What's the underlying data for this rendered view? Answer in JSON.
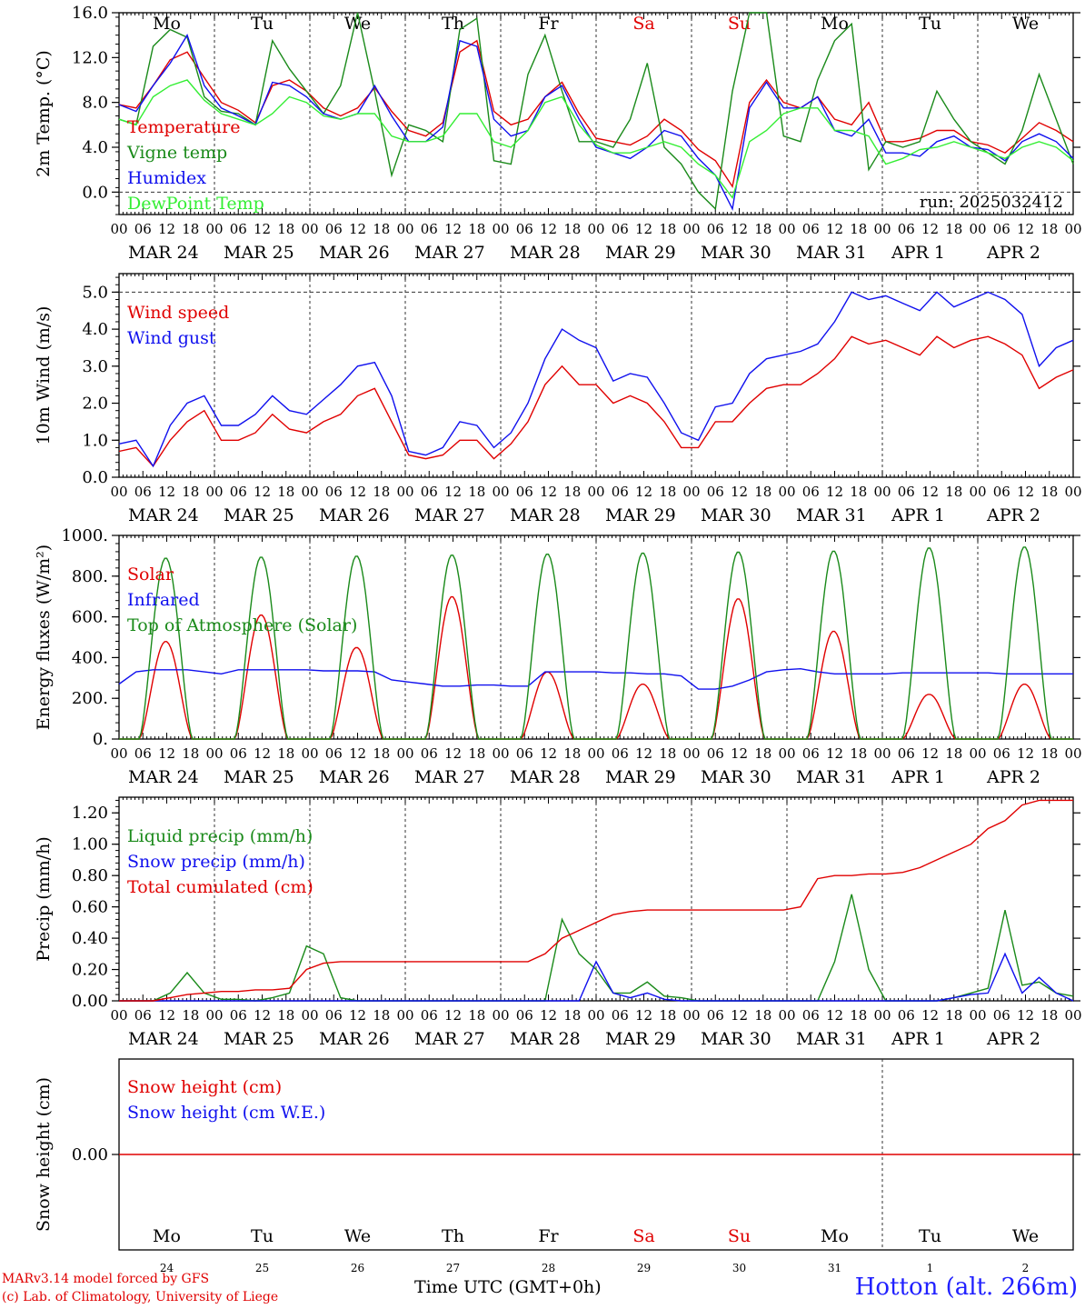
{
  "colors": {
    "red": "#e00000",
    "green": "#1a8a1a",
    "blue": "#1010ee",
    "lightgreen": "#33ee33"
  },
  "chart_data": [
    {
      "type": "line",
      "ylabel": "2m Temp. (°C)",
      "ylim": [
        -2,
        16
      ],
      "yticks": [
        0,
        4,
        8,
        12,
        16
      ],
      "yticklabels": [
        "0.0",
        "4.0",
        "8.0",
        "12.0",
        "16.0"
      ],
      "dashed_y": [
        0
      ],
      "day_labels": [
        "Mo",
        "Tu",
        "We",
        "Th",
        "Fr",
        "Sa",
        "Su",
        "Mo",
        "Tu",
        "We"
      ],
      "run_label": "run: 2025032412",
      "x": "hours since 2025-03-24 00 UTC, 6-hourly",
      "series": [
        {
          "name": "Temperature",
          "color": "red",
          "values": [
            7.8,
            7.5,
            9.5,
            11.8,
            12.5,
            10.2,
            8.0,
            7.3,
            6.2,
            9.5,
            10.0,
            9.0,
            7.5,
            6.8,
            7.5,
            9.3,
            7.2,
            5.5,
            5.0,
            6.2,
            12.5,
            13.5,
            7.2,
            6.0,
            6.5,
            8.5,
            9.8,
            7.0,
            4.8,
            4.5,
            4.2,
            5.0,
            6.5,
            5.5,
            3.8,
            2.8,
            0.5,
            8.0,
            10.0,
            8.0,
            7.5,
            8.5,
            6.5,
            6.0,
            8.0,
            4.5,
            4.5,
            4.8,
            5.5,
            5.5,
            4.5,
            4.2,
            3.5,
            4.8,
            6.2,
            5.5,
            4.5
          ]
        },
        {
          "name": "Vigne temp",
          "color": "green",
          "values": [
            6.5,
            6.0,
            13.0,
            14.5,
            13.8,
            8.5,
            7.2,
            7.0,
            6.0,
            13.5,
            11.0,
            9.0,
            7.0,
            9.5,
            16.0,
            9.0,
            1.5,
            6.0,
            5.5,
            4.5,
            14.5,
            15.5,
            2.8,
            2.5,
            10.5,
            14.0,
            9.0,
            4.5,
            4.5,
            4.0,
            6.5,
            11.5,
            4.0,
            2.5,
            0.0,
            -1.5,
            9.0,
            16.0,
            16.0,
            5.0,
            4.5,
            10.0,
            13.5,
            15.0,
            2.0,
            4.5,
            4.0,
            4.5,
            9.0,
            6.5,
            4.5,
            3.5,
            2.5,
            5.5,
            10.5,
            6.5,
            2.5
          ]
        },
        {
          "name": "Humidex",
          "color": "blue",
          "values": [
            7.8,
            7.2,
            9.5,
            11.5,
            14.0,
            9.5,
            7.5,
            6.8,
            6.0,
            9.8,
            9.5,
            8.5,
            7.0,
            6.5,
            7.0,
            9.5,
            6.8,
            4.5,
            4.5,
            5.8,
            13.5,
            13.0,
            6.5,
            5.0,
            5.5,
            8.5,
            9.5,
            6.5,
            4.0,
            3.5,
            3.0,
            4.0,
            5.5,
            5.0,
            3.0,
            1.5,
            -1.5,
            7.5,
            9.8,
            7.5,
            7.5,
            8.5,
            5.5,
            5.0,
            6.5,
            3.5,
            3.5,
            3.2,
            4.5,
            5.0,
            4.0,
            3.8,
            2.8,
            4.5,
            5.2,
            4.5,
            3.0
          ]
        },
        {
          "name": "DewPoint Temp",
          "color": "lightgreen",
          "values": [
            6.5,
            6.0,
            8.5,
            9.5,
            10.0,
            8.2,
            7.0,
            6.5,
            6.0,
            7.0,
            8.5,
            8.0,
            6.8,
            6.5,
            7.0,
            7.0,
            5.0,
            4.5,
            4.5,
            5.0,
            7.0,
            7.0,
            4.5,
            4.0,
            5.5,
            8.0,
            8.5,
            6.0,
            4.2,
            3.5,
            3.5,
            4.0,
            4.5,
            4.0,
            2.5,
            1.5,
            -0.5,
            4.5,
            5.5,
            7.0,
            7.5,
            7.5,
            5.5,
            5.5,
            5.0,
            2.5,
            3.0,
            3.8,
            4.0,
            4.5,
            4.0,
            3.5,
            3.0,
            4.0,
            4.5,
            4.0,
            2.8
          ]
        }
      ]
    },
    {
      "type": "line",
      "ylabel": "10m Wind (m/s)",
      "ylim": [
        0,
        5.5
      ],
      "yticks": [
        0,
        1,
        2,
        3,
        4,
        5
      ],
      "yticklabels": [
        "0.0",
        "1.0",
        "2.0",
        "3.0",
        "4.0",
        "5.0"
      ],
      "dashed_y": [
        5
      ],
      "series": [
        {
          "name": "Wind speed",
          "color": "red",
          "values": [
            0.7,
            0.8,
            0.3,
            1.0,
            1.5,
            1.8,
            1.0,
            1.0,
            1.2,
            1.7,
            1.3,
            1.2,
            1.5,
            1.7,
            2.2,
            2.4,
            1.5,
            0.6,
            0.5,
            0.6,
            1.0,
            1.0,
            0.5,
            0.9,
            1.5,
            2.5,
            3.0,
            2.5,
            2.5,
            2.0,
            2.2,
            2.0,
            1.5,
            0.8,
            0.8,
            1.5,
            1.5,
            2.0,
            2.4,
            2.5,
            2.5,
            2.8,
            3.2,
            3.8,
            3.6,
            3.7,
            3.5,
            3.3,
            3.8,
            3.5,
            3.7,
            3.8,
            3.6,
            3.3,
            2.4,
            2.7,
            2.9
          ]
        },
        {
          "name": "Wind gust",
          "color": "blue",
          "values": [
            0.9,
            1.0,
            0.3,
            1.4,
            2.0,
            2.2,
            1.4,
            1.4,
            1.7,
            2.2,
            1.8,
            1.7,
            2.1,
            2.5,
            3.0,
            3.1,
            2.2,
            0.7,
            0.6,
            0.8,
            1.5,
            1.4,
            0.8,
            1.2,
            2.0,
            3.2,
            4.0,
            3.7,
            3.5,
            2.6,
            2.8,
            2.7,
            2.0,
            1.2,
            1.0,
            1.9,
            2.0,
            2.8,
            3.2,
            3.3,
            3.4,
            3.6,
            4.2,
            5.0,
            4.8,
            4.9,
            4.7,
            4.5,
            5.0,
            4.6,
            4.8,
            5.0,
            4.8,
            4.4,
            3.0,
            3.5,
            3.7
          ]
        }
      ]
    },
    {
      "type": "line",
      "ylabel": "Energy fluxes (W/m²)",
      "ylim": [
        0,
        1000
      ],
      "yticks": [
        0,
        200,
        400,
        600,
        800,
        1000
      ],
      "yticklabels": [
        "0.",
        "200.",
        "400.",
        "600.",
        "800.",
        "1000."
      ],
      "series": [
        {
          "name": "Solar",
          "color": "red",
          "values_per_day": [
            480,
            610,
            450,
            700,
            330,
            270,
            690,
            530,
            220,
            270
          ]
        },
        {
          "name": "Infrared",
          "color": "blue",
          "values": [
            270,
            330,
            340,
            340,
            340,
            330,
            320,
            340,
            340,
            340,
            340,
            340,
            335,
            335,
            335,
            330,
            290,
            280,
            270,
            260,
            260,
            265,
            265,
            260,
            260,
            330,
            330,
            330,
            330,
            325,
            325,
            320,
            320,
            310,
            245,
            245,
            260,
            290,
            330,
            340,
            345,
            330,
            320,
            320,
            320,
            320,
            325,
            325,
            325,
            325,
            325,
            325,
            320,
            320,
            320,
            320,
            320
          ]
        },
        {
          "name": "Top of Atmosphere (Solar)",
          "color": "green",
          "values_per_day": [
            890,
            895,
            900,
            905,
            910,
            915,
            920,
            925,
            940,
            945
          ]
        }
      ]
    },
    {
      "type": "line",
      "ylabel": "Precip (mm/h)",
      "ylim": [
        0,
        1.3
      ],
      "yticks": [
        0,
        0.2,
        0.4,
        0.6,
        0.8,
        1.0,
        1.2
      ],
      "yticklabels": [
        "0.00",
        "0.20",
        "0.40",
        "0.60",
        "0.80",
        "1.00",
        "1.20"
      ],
      "series": [
        {
          "name": "Liquid precip (mm/h)",
          "color": "green",
          "values": [
            0,
            0,
            0,
            0.05,
            0.18,
            0.05,
            0.01,
            0.01,
            0,
            0.02,
            0.05,
            0.35,
            0.3,
            0.02,
            0,
            0,
            0,
            0,
            0,
            0,
            0,
            0,
            0,
            0,
            0,
            0,
            0.52,
            0.3,
            0.2,
            0.05,
            0.05,
            0.12,
            0.03,
            0.02,
            0,
            0,
            0,
            0,
            0,
            0,
            0,
            0,
            0.25,
            0.68,
            0.2,
            0,
            0,
            0,
            0,
            0.02,
            0.05,
            0.08,
            0.58,
            0.1,
            0.12,
            0.05,
            0.03
          ]
        },
        {
          "name": "Snow precip (mm/h)",
          "color": "blue",
          "values": [
            0,
            0,
            0,
            0,
            0,
            0,
            0,
            0,
            0,
            0,
            0,
            0,
            0,
            0,
            0,
            0,
            0,
            0,
            0,
            0,
            0,
            0,
            0,
            0,
            0,
            0,
            0,
            0,
            0.25,
            0.05,
            0.02,
            0.05,
            0.01,
            0,
            0,
            0,
            0,
            0,
            0,
            0,
            0,
            0,
            0,
            0,
            0,
            0,
            0,
            0,
            0,
            0.02,
            0.04,
            0.05,
            0.3,
            0.05,
            0.15,
            0.05,
            0
          ]
        },
        {
          "name": "Total cumulated (cm)",
          "color": "red",
          "values": [
            0,
            0,
            0,
            0.02,
            0.04,
            0.05,
            0.06,
            0.06,
            0.07,
            0.07,
            0.08,
            0.2,
            0.24,
            0.25,
            0.25,
            0.25,
            0.25,
            0.25,
            0.25,
            0.25,
            0.25,
            0.25,
            0.25,
            0.25,
            0.25,
            0.3,
            0.4,
            0.45,
            0.5,
            0.55,
            0.57,
            0.58,
            0.58,
            0.58,
            0.58,
            0.58,
            0.58,
            0.58,
            0.58,
            0.58,
            0.6,
            0.78,
            0.8,
            0.8,
            0.81,
            0.81,
            0.82,
            0.85,
            0.9,
            0.95,
            1.0,
            1.1,
            1.15,
            1.25,
            1.28,
            1.28,
            1.28
          ]
        }
      ]
    },
    {
      "type": "line",
      "ylabel": "Snow height (cm)",
      "ylim": [
        -1,
        1
      ],
      "yticks": [
        0
      ],
      "yticklabels": [
        "0.00"
      ],
      "series": [
        {
          "name": "Snow height (cm)",
          "color": "red",
          "values": [
            0,
            0
          ]
        },
        {
          "name": "Snow height (cm W.E.)",
          "color": "blue",
          "values": []
        }
      ],
      "day_labels": [
        "Mo",
        "Tu",
        "We",
        "Th",
        "Fr",
        "Sa",
        "Su",
        "Mo",
        "Tu",
        "We"
      ],
      "date_numbers": [
        "24",
        "25",
        "26",
        "27",
        "28",
        "29",
        "30",
        "31",
        "1",
        "2"
      ]
    }
  ],
  "x_axis": {
    "hour_labels": [
      "00",
      "06",
      "12",
      "18"
    ],
    "date_labels": [
      "MAR 24",
      "MAR 25",
      "MAR 26",
      "MAR 27",
      "MAR 28",
      "MAR 29",
      "MAR 30",
      "MAR 31",
      "APR  1",
      "APR  2"
    ],
    "weekend_days": [
      "Sa",
      "Su"
    ]
  },
  "footer": {
    "credit_line1": "MARv3.14 model forced by GFS",
    "credit_line2": "(c) Lab. of Climatology, University of Liege",
    "x_title": "Time UTC (GMT+0h)",
    "station": "Hotton (alt. 266m)"
  }
}
